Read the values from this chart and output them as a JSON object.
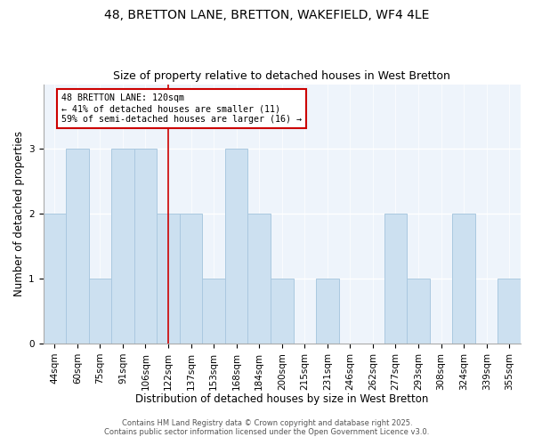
{
  "title": "48, BRETTON LANE, BRETTON, WAKEFIELD, WF4 4LE",
  "subtitle": "Size of property relative to detached houses in West Bretton",
  "xlabel": "Distribution of detached houses by size in West Bretton",
  "ylabel": "Number of detached properties",
  "categories": [
    "44sqm",
    "60sqm",
    "75sqm",
    "91sqm",
    "106sqm",
    "122sqm",
    "137sqm",
    "153sqm",
    "168sqm",
    "184sqm",
    "200sqm",
    "215sqm",
    "231sqm",
    "246sqm",
    "262sqm",
    "277sqm",
    "293sqm",
    "308sqm",
    "324sqm",
    "339sqm",
    "355sqm"
  ],
  "values": [
    2,
    3,
    1,
    3,
    3,
    2,
    2,
    1,
    3,
    2,
    1,
    0,
    1,
    0,
    0,
    2,
    1,
    0,
    2,
    0,
    1
  ],
  "bar_color": "#cce0f0",
  "bar_edgecolor": "#aac8e0",
  "highlight_index": 5,
  "highlight_line_color": "#cc0000",
  "annotation_text": "48 BRETTON LANE: 120sqm\n← 41% of detached houses are smaller (11)\n59% of semi-detached houses are larger (16) →",
  "annotation_box_edgecolor": "#cc0000",
  "ylim": [
    0,
    4
  ],
  "yticks": [
    0,
    1,
    2,
    3
  ],
  "bg_color": "#eef4fb",
  "footer_line1": "Contains HM Land Registry data © Crown copyright and database right 2025.",
  "footer_line2": "Contains public sector information licensed under the Open Government Licence v3.0.",
  "title_fontsize": 10,
  "subtitle_fontsize": 9,
  "axis_label_fontsize": 8.5,
  "tick_fontsize": 7.5,
  "footer_fontsize": 6
}
